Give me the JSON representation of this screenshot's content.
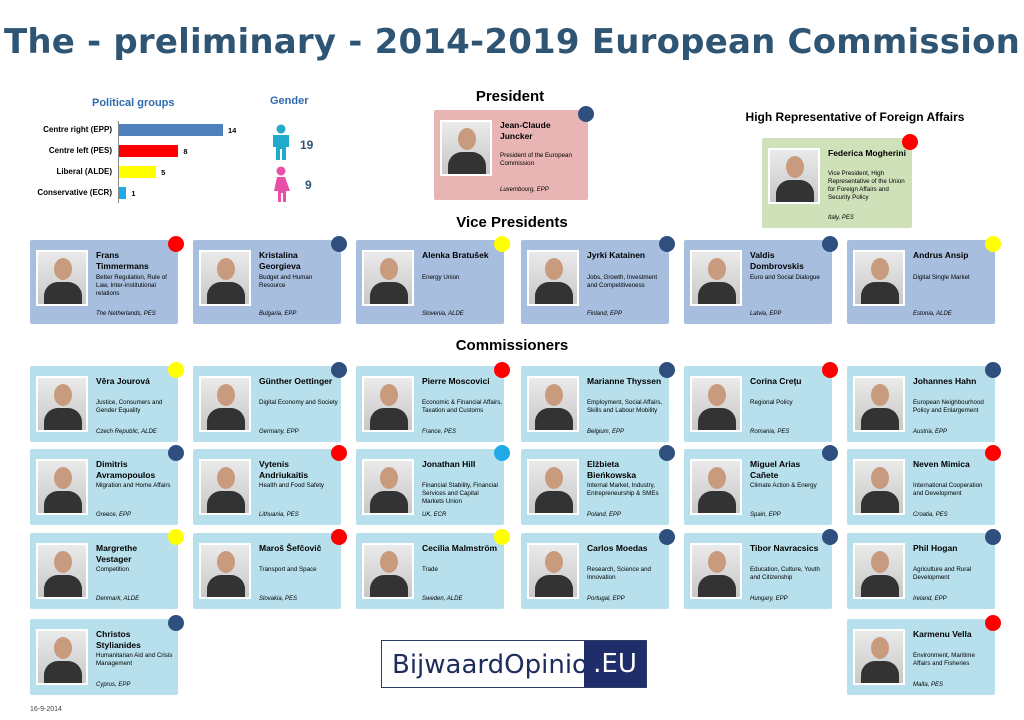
{
  "title": "The - preliminary - 2014-2019 European Commission",
  "political_groups": {
    "title": "Political groups",
    "items": [
      {
        "label": "Centre right (EPP)",
        "value": 14,
        "color": "#4f81bd"
      },
      {
        "label": "Centre left (PES)",
        "value": 8,
        "color": "#ff0000"
      },
      {
        "label": "Liberal (ALDE)",
        "value": 5,
        "color": "#ffff00"
      },
      {
        "label": "Conservative (ECR)",
        "value": 1,
        "color": "#1fa9e6"
      }
    ]
  },
  "gender": {
    "title": "Gender",
    "male": "19",
    "female": "9",
    "male_color": "#22aacc",
    "female_color": "#e94fa6"
  },
  "sections": {
    "president": "President",
    "high_rep": "High Representative of Foreign Affairs",
    "vice_presidents": "Vice Presidents",
    "commissioners": "Commissioners"
  },
  "party_colors": {
    "EPP": "#2f4f7f",
    "PES": "#ff0000",
    "ALDE": "#ffff00",
    "ECR": "#1fa9e6"
  },
  "president": {
    "name": "Jean-Claude Juncker",
    "role": "President of the European Commission",
    "country": "Luxembourg, EPP",
    "party": "EPP"
  },
  "high_rep": {
    "name": "Federica Mogherini",
    "role": "Vice President, High Representative of the Union for Foreign Affairs and Security Policy",
    "country": "Italy, PES",
    "party": "PES"
  },
  "vice_presidents": [
    {
      "name": "Frans Timmermans",
      "role": "Better Regulation, Rule of Law, Inter-institutional relations",
      "country": "The Netherlands, PES",
      "party": "PES"
    },
    {
      "name": "Kristalina Georgieva",
      "role": "Budget and Human Resource",
      "country": "Bulgaria, EPP",
      "party": "EPP"
    },
    {
      "name": "Alenka Bratušek",
      "role": "Energy Union",
      "country": "Slovenia, ALDE",
      "party": "ALDE"
    },
    {
      "name": "Jyrki Katainen",
      "role": "Jobs, Growth, Investment and Competitiveness",
      "country": "Finland, EPP",
      "party": "EPP"
    },
    {
      "name": "Valdis Dombrovskis",
      "role": "Euro and Social Dialogue",
      "country": "Latvia, EPP",
      "party": "EPP"
    },
    {
      "name": "Andrus Ansip",
      "role": "Digital Single Market",
      "country": "Estonia, ALDE",
      "party": "ALDE"
    }
  ],
  "commissioners": [
    {
      "name": "Věra Jourová",
      "role": "Justice, Consumers and Gender Equality",
      "country": "Czech Republic, ALDE",
      "party": "ALDE"
    },
    {
      "name": "Günther Oettinger",
      "role": "Digital Economy and Society",
      "country": "Germany, EPP",
      "party": "EPP"
    },
    {
      "name": "Pierre Moscovici",
      "role": "Economic & Financial Affairs, Taxation and Customs",
      "country": "France, PES",
      "party": "PES"
    },
    {
      "name": "Marianne Thyssen",
      "role": "Employment, Social Affairs, Skills and Labour Mobility",
      "country": "Belgium, EPP",
      "party": "EPP"
    },
    {
      "name": "Corina Creţu",
      "role": "Regional Policy",
      "country": "Romania, PES",
      "party": "PES"
    },
    {
      "name": "Johannes Hahn",
      "role": "European Neighbourhood Policy and Enlargement",
      "country": "Austria, EPP",
      "party": "EPP"
    },
    {
      "name": "Dimitris Avramopoulos",
      "role": "Migration and Home Affairs",
      "country": "Greece, EPP",
      "party": "EPP"
    },
    {
      "name": "Vytenis Andriukaitis",
      "role": "Health and Food Safety",
      "country": "Lithuania, PES",
      "party": "PES"
    },
    {
      "name": "Jonathan Hill",
      "role": "Financial Stability, Financial Services and Capital Markets Union",
      "country": "UK, ECR",
      "party": "ECR"
    },
    {
      "name": "Elżbieta Bieńkowska",
      "role": "Internal Market, Industry, Entrepreneurship & SMEs",
      "country": "Poland, EPP",
      "party": "EPP"
    },
    {
      "name": "Miguel Arias Cañete",
      "role": "Climate Action & Energy",
      "country": "Spain, EPP",
      "party": "EPP"
    },
    {
      "name": "Neven Mimica",
      "role": "International Cooperation and Development",
      "country": "Croatia, PES",
      "party": "PES"
    },
    {
      "name": "Margrethe Vestager",
      "role": "Competition",
      "country": "Denmark, ALDE",
      "party": "ALDE"
    },
    {
      "name": "Maroš Šefčovič",
      "role": "Transport and Space",
      "country": "Slovakia, PES",
      "party": "PES"
    },
    {
      "name": "Cecilia Malmström",
      "role": "Trade",
      "country": "Sweden, ALDE",
      "party": "ALDE"
    },
    {
      "name": "Carlos Moedas",
      "role": "Research, Science and Innovation",
      "country": "Portugal, EPP",
      "party": "EPP"
    },
    {
      "name": "Tibor Navracsics",
      "role": "Education, Culture, Youth and Citizenship",
      "country": "Hungary, EPP",
      "party": "EPP"
    },
    {
      "name": "Phil Hogan",
      "role": "Agriculture and Rural Development",
      "country": "Ireland, EPP",
      "party": "EPP"
    },
    {
      "name": "Christos Stylianides",
      "role": "Humanitarian Aid and Crisis Management",
      "country": "Cyprus, EPP",
      "party": "EPP"
    },
    {
      "name": "Karmenu Vella",
      "role": "Environment, Maritime Affairs and Fisheries",
      "country": "Malta, PES",
      "party": "PES"
    }
  ],
  "logo": {
    "text": "BijwaardOpinion",
    "suffix": ".EU"
  },
  "date": "16-9-2014"
}
